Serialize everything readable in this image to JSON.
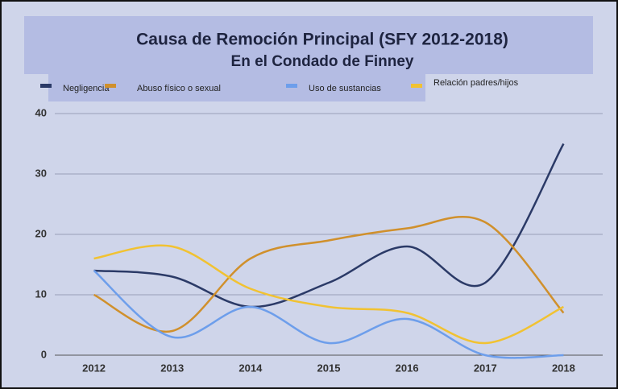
{
  "chart_data": {
    "type": "line",
    "title": "Causa de Remoción Principal (SFY 2012-2018)",
    "subtitle": "En el Condado de Finney",
    "categories": [
      "2012",
      "2013",
      "2014",
      "2015",
      "2016",
      "2017",
      "2018"
    ],
    "series": [
      {
        "name": "Negligencia",
        "color": "#2b3a67",
        "values": [
          14,
          13,
          8,
          12,
          18,
          12,
          35
        ]
      },
      {
        "name": "Abuso físico o sexual",
        "color": "#d0902c",
        "values": [
          10,
          4,
          16,
          19,
          21,
          22,
          7
        ]
      },
      {
        "name": "Uso de sustancias",
        "color": "#6d9eeb",
        "values": [
          14,
          3,
          8,
          2,
          6,
          0,
          0
        ]
      },
      {
        "name": "Relación padres/hijos",
        "color": "#f1c232",
        "values": [
          16,
          18,
          11,
          8,
          7,
          2,
          8
        ]
      }
    ],
    "ylim": [
      0,
      40
    ],
    "yticks": [
      0,
      10,
      20,
      30,
      40
    ],
    "grid": true
  }
}
